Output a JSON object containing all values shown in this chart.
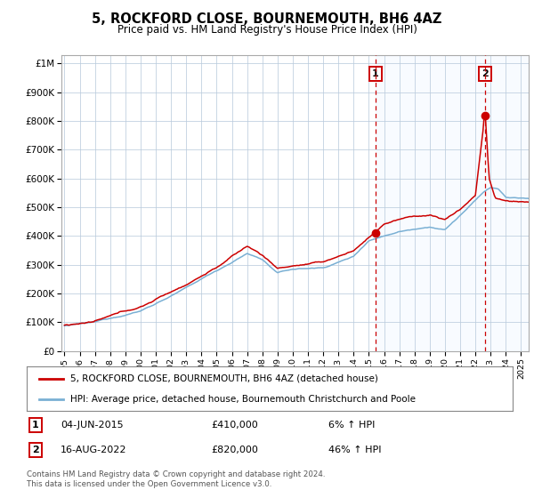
{
  "title": "5, ROCKFORD CLOSE, BOURNEMOUTH, BH6 4AZ",
  "subtitle": "Price paid vs. HM Land Registry's House Price Index (HPI)",
  "legend_line1": "5, ROCKFORD CLOSE, BOURNEMOUTH, BH6 4AZ (detached house)",
  "legend_line2": "HPI: Average price, detached house, Bournemouth Christchurch and Poole",
  "annotation1_date": "04-JUN-2015",
  "annotation1_price": "£410,000",
  "annotation1_hpi": "6% ↑ HPI",
  "annotation2_date": "16-AUG-2022",
  "annotation2_price": "£820,000",
  "annotation2_hpi": "46% ↑ HPI",
  "footer": "Contains HM Land Registry data © Crown copyright and database right 2024.\nThis data is licensed under the Open Government Licence v3.0.",
  "red_color": "#cc0000",
  "blue_color": "#7ab0d4",
  "bg_color": "#ddeeff",
  "plot_bg": "#ffffff",
  "grid_color": "#bbccdd",
  "ylim": [
    0,
    1000000
  ],
  "yticks": [
    0,
    100000,
    200000,
    300000,
    400000,
    500000,
    600000,
    700000,
    800000,
    900000,
    1000000
  ],
  "ytick_labels": [
    "£0",
    "£100K",
    "£200K",
    "£300K",
    "£400K",
    "£500K",
    "£600K",
    "£700K",
    "£800K",
    "£900K",
    "£1M"
  ],
  "sale1_x": 2015.42,
  "sale1_y": 410000,
  "sale2_x": 2022.62,
  "sale2_y": 820000,
  "xmin": 1994.8,
  "xmax": 2025.5
}
